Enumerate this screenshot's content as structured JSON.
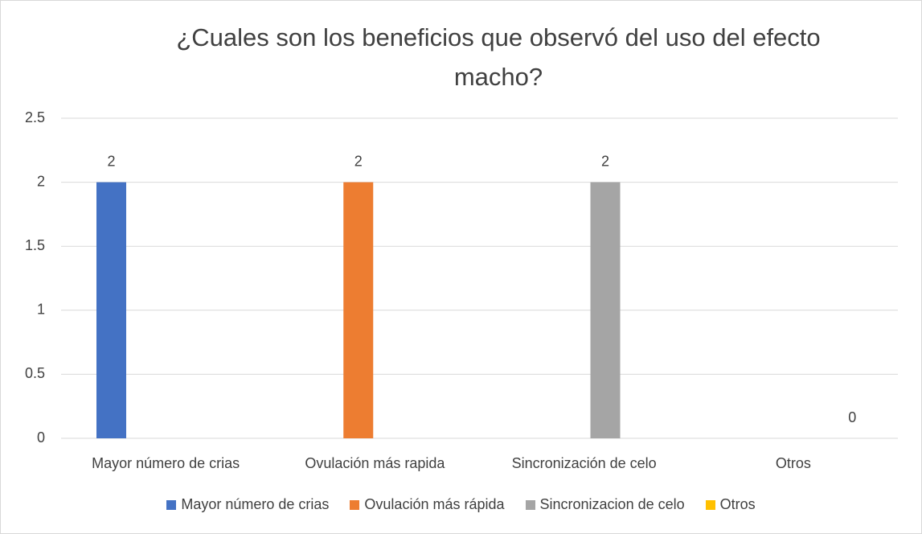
{
  "chart_data": {
    "type": "bar",
    "title": "¿Cuales son los beneficios que observó del uso del efecto macho?",
    "categories": [
      "Mayor número de crias",
      "Ovulación más rapida",
      "Sincronización de celo",
      "Otros"
    ],
    "series": [
      {
        "name": "Mayor número de crias",
        "color": "#4472c4",
        "values": [
          2,
          null,
          null,
          null
        ]
      },
      {
        "name": "Ovulación más rápida",
        "color": "#ed7d31",
        "values": [
          null,
          2,
          null,
          null
        ]
      },
      {
        "name": "Sincronizacion de celo",
        "color": "#a5a5a5",
        "values": [
          null,
          null,
          2,
          null
        ]
      },
      {
        "name": "Otros",
        "color": "#ffc000",
        "values": [
          null,
          null,
          null,
          0
        ]
      }
    ],
    "ylim": [
      0,
      2.5
    ],
    "yticks": [
      0,
      0.5,
      1,
      1.5,
      2,
      2.5
    ],
    "grid": true,
    "legend": "bottom"
  }
}
